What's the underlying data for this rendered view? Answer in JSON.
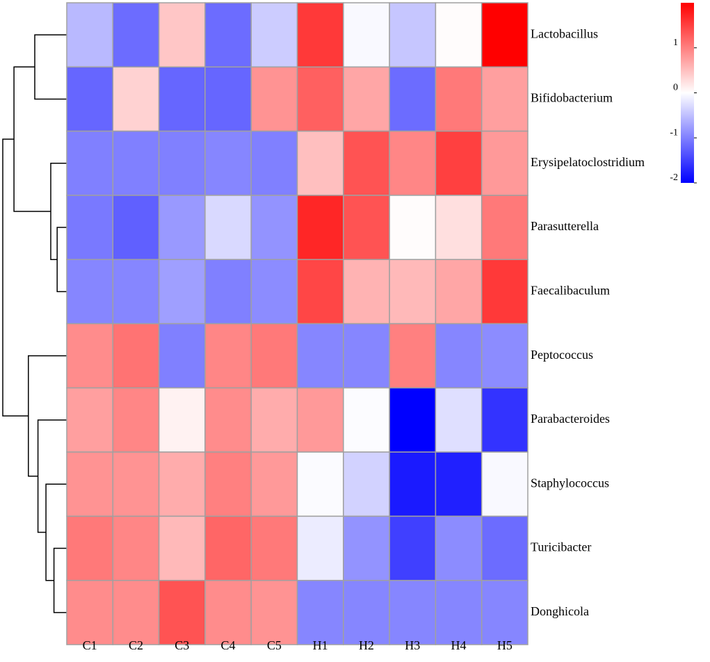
{
  "chart_data": {
    "type": "heatmap",
    "title": "",
    "columns": [
      "C1",
      "C2",
      "C3",
      "C4",
      "C5",
      "H1",
      "H2",
      "H3",
      "H4",
      "H5"
    ],
    "rows": [
      "Lactobacillus",
      "Bifidobacterium",
      "Erysipelatoclostridium",
      "Parasutterella",
      "Faecalibaculum",
      "Peptococcus",
      "Parabacteroides",
      "Staphylococcus",
      "Turicibacter",
      "Donghicola"
    ],
    "values": [
      [
        -0.55,
        -1.15,
        0.45,
        -1.15,
        -0.4,
        1.55,
        -0.05,
        -0.45,
        0.02,
        2.0
      ],
      [
        -1.2,
        0.35,
        -1.2,
        -1.2,
        0.85,
        1.25,
        0.7,
        -1.15,
        1.05,
        0.75
      ],
      [
        -1.0,
        -1.0,
        -1.0,
        -0.95,
        -1.0,
        0.5,
        1.35,
        0.95,
        1.5,
        0.8
      ],
      [
        -1.05,
        -1.25,
        -0.8,
        -0.3,
        -0.85,
        1.7,
        1.35,
        0.02,
        0.25,
        1.05
      ],
      [
        -0.95,
        -0.95,
        -0.75,
        -1.0,
        -0.9,
        1.45,
        0.6,
        0.55,
        0.7,
        1.55
      ],
      [
        0.9,
        1.1,
        -1.0,
        0.95,
        1.05,
        -0.95,
        -0.95,
        1.0,
        -0.95,
        -0.9
      ],
      [
        0.75,
        0.95,
        0.1,
        0.9,
        0.65,
        0.8,
        -0.02,
        -2.0,
        -0.25,
        -1.6
      ],
      [
        0.85,
        0.85,
        0.65,
        1.0,
        0.8,
        -0.03,
        -0.35,
        -1.8,
        -1.75,
        -0.05
      ],
      [
        1.05,
        0.95,
        0.55,
        1.2,
        1.05,
        -0.15,
        -0.85,
        -1.5,
        -0.9,
        -1.15
      ],
      [
        0.9,
        0.9,
        1.35,
        0.9,
        0.85,
        -0.95,
        -0.95,
        -0.95,
        -0.95,
        -0.95
      ]
    ],
    "color_scale": {
      "min": -2,
      "mid": 0,
      "max": 2,
      "min_color": "#0000ff",
      "mid_color": "#ffffff",
      "max_color": "#ff0000",
      "ticks": [
        "1",
        "0",
        "-1",
        "-2"
      ],
      "tick_values": [
        1,
        0,
        -1,
        -2
      ]
    },
    "cell_border_color": "#a0a0a0",
    "dendrogram": {
      "side": "left",
      "nodes": [
        {
          "id": "n1",
          "left": "Lactobacillus",
          "right": "Bifidobacterium",
          "height": 0.2
        },
        {
          "id": "n2",
          "left": "Parasutterella",
          "right": "Faecalibaculum",
          "height": 0.06
        },
        {
          "id": "n3",
          "left": "Erysipelatoclostridium",
          "right": "n2",
          "height": 0.1
        },
        {
          "id": "n4",
          "left": "n1",
          "right": "n3",
          "height": 0.33
        },
        {
          "id": "n5",
          "left": "Turicibacter",
          "right": "Donghicola",
          "height": 0.08
        },
        {
          "id": "n6",
          "left": "Staphylococcus",
          "right": "n5",
          "height": 0.13
        },
        {
          "id": "n7",
          "left": "Parabacteroides",
          "right": "n6",
          "height": 0.18
        },
        {
          "id": "n8",
          "left": "Peptococcus",
          "right": "n7",
          "height": 0.24
        },
        {
          "id": "n9",
          "left": "n4",
          "right": "n8",
          "height": 0.4
        }
      ]
    }
  }
}
